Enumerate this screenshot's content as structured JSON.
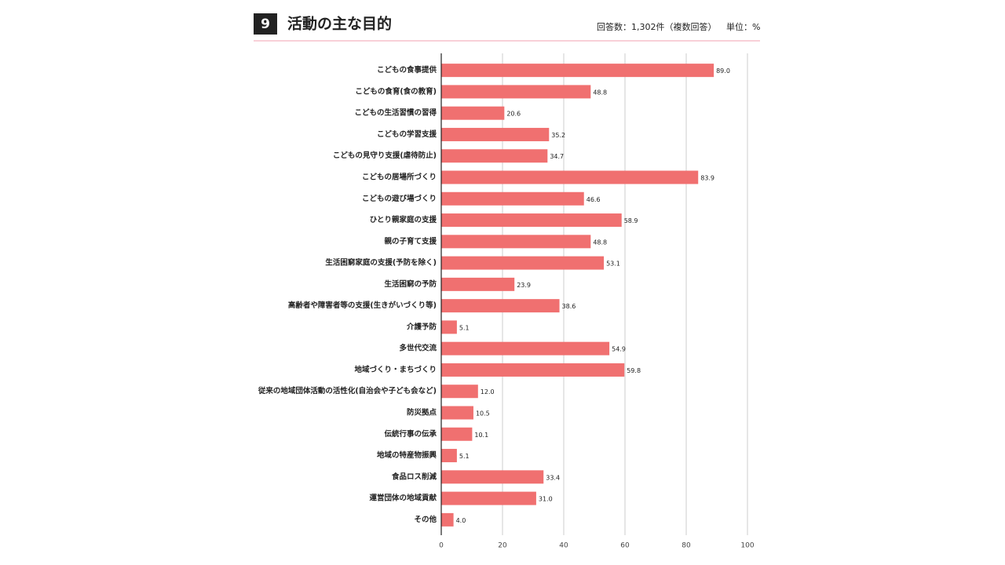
{
  "chart_data": {
    "type": "bar",
    "orientation": "horizontal",
    "number": "9",
    "title": "活動の主な目的",
    "respondents": "回答数：1,302件（複数回答）",
    "unit": "単位：%",
    "categories": [
      "こどもの食事提供",
      "こどもの食育(食の教育)",
      "こどもの生活習慣の習得",
      "こどもの学習支援",
      "こどもの見守り支援(虐待防止)",
      "こどもの居場所づくり",
      "こどもの遊び場づくり",
      "ひとり親家庭の支援",
      "親の子育て支援",
      "生活困窮家庭の支援(予防を除く)",
      "生活困窮の予防",
      "高齢者や障害者等の支援(生きがいづくり等)",
      "介護予防",
      "多世代交流",
      "地域づくり・まちづくり",
      "従来の地域団体活動の活性化(自治会や子ども会など)",
      "防災拠点",
      "伝統行事の伝承",
      "地域の特産物振興",
      "食品ロス削減",
      "運営団体の地域貢献",
      "その他"
    ],
    "values": [
      89.0,
      48.8,
      20.6,
      35.2,
      34.7,
      83.9,
      46.6,
      58.9,
      48.8,
      53.1,
      23.9,
      38.6,
      5.1,
      54.9,
      59.8,
      12.0,
      10.5,
      10.1,
      5.1,
      33.4,
      31.0,
      4.0
    ],
    "value_labels": [
      "89.0",
      "48.8",
      "20.6",
      "35.2",
      "34.7",
      "83.9",
      "46.6",
      "58.9",
      "48.8",
      "53.1",
      "23.9",
      "38.6",
      "5.1",
      "54.9",
      "59.8",
      "12.0",
      "10.5",
      "10.1",
      "5.1",
      "33.4",
      "31.0",
      "4.0"
    ],
    "color": "#f07070",
    "xlim": [
      0,
      100
    ],
    "xticks": [
      0,
      20,
      40,
      60,
      80,
      100
    ],
    "grid": true
  }
}
